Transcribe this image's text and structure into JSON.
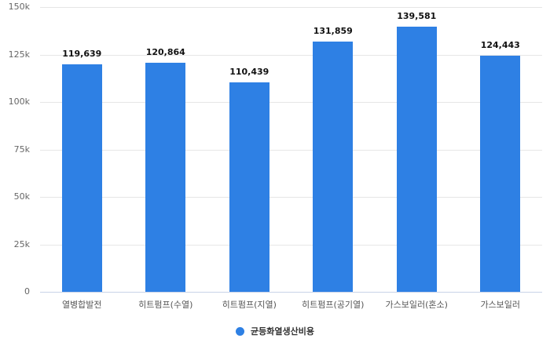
{
  "chart_data": {
    "type": "bar",
    "title": "",
    "xlabel": "",
    "ylabel": "",
    "categories": [
      "열병합발전",
      "히트펌프(수열)",
      "히트펌프(지열)",
      "히트펌프(공기열)",
      "가스보일러(혼소)",
      "가스보일러"
    ],
    "series": [
      {
        "name": "균등화열생산비용",
        "values": [
          119639,
          120864,
          110439,
          131859,
          139581,
          124443
        ],
        "labels": [
          "119,639",
          "120,864",
          "110,439",
          "131,859",
          "139,581",
          "124,443"
        ],
        "color": "#2e80e4"
      }
    ],
    "ylim": [
      0,
      150000
    ],
    "yticks": [
      0,
      25000,
      50000,
      75000,
      100000,
      125000,
      150000
    ],
    "ytick_labels": [
      "0",
      "25k",
      "50k",
      "75k",
      "100k",
      "125k",
      "150k"
    ],
    "grid": true,
    "legend_position": "bottom"
  },
  "legend": {
    "label": "균등화열생산비용",
    "color": "#2e80e4"
  }
}
